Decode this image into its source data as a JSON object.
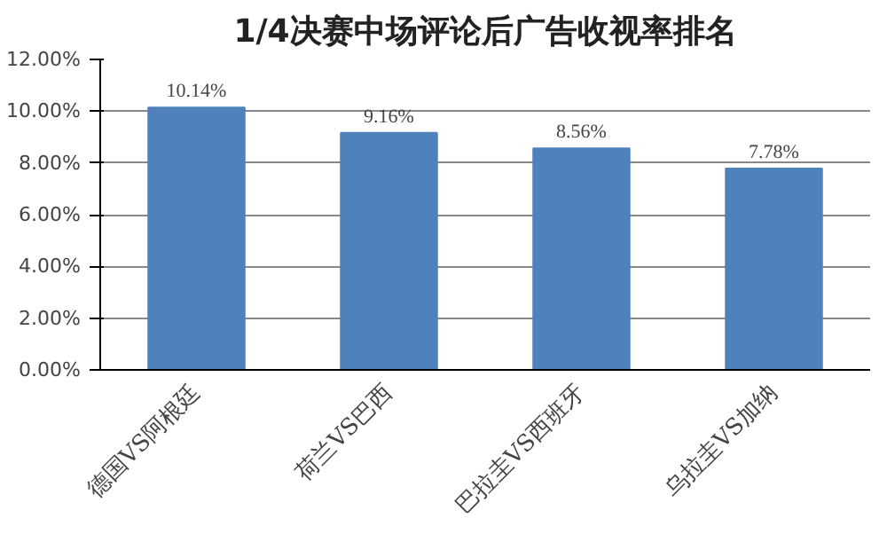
{
  "chart_data": {
    "type": "bar",
    "title": "1/4决赛中场评论后广告收视率排名",
    "categories": [
      "德国VS阿根廷",
      "荷兰VS巴西",
      "巴拉圭VS西班牙",
      "乌拉圭VS加纳"
    ],
    "values": [
      10.14,
      9.16,
      8.56,
      7.78
    ],
    "value_labels": [
      "10.14%",
      "9.16%",
      "8.56%",
      "7.78%"
    ],
    "color": "#4f81bd",
    "ylim": [
      0,
      12
    ],
    "yticks": [
      {
        "value": 0,
        "label": "0.00%"
      },
      {
        "value": 2,
        "label": "2.00%"
      },
      {
        "value": 4,
        "label": "4.00%"
      },
      {
        "value": 6,
        "label": "6.00%"
      },
      {
        "value": 8,
        "label": "8.00%"
      },
      {
        "value": 10,
        "label": "10.00%"
      },
      {
        "value": 12,
        "label": "12.00%"
      }
    ],
    "grid": "y"
  }
}
